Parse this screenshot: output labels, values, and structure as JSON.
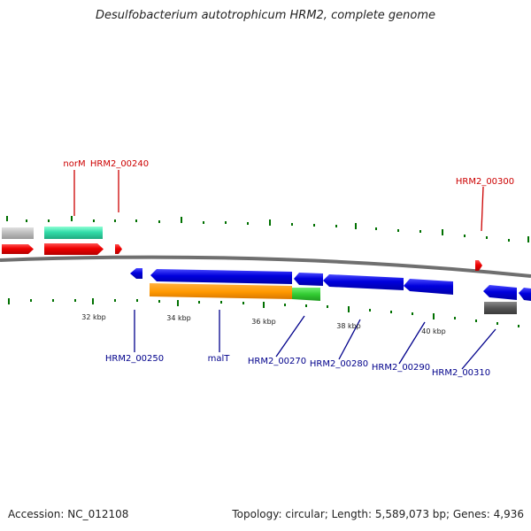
{
  "title": "Desulfobacterium autotrophicum HRM2, complete genome",
  "footer": {
    "accession": "Accession: NC_012108",
    "summary": "Topology: circular; Length: 5,589,073 bp; Genes: 4,936"
  },
  "colors": {
    "forward_label": "#cc0000",
    "reverse_label": "#00008b",
    "tick": "#007000",
    "forward_gene": "#ee0000",
    "reverse_gene": "#0000dd",
    "backbone": "#666666",
    "orange_gene": "#ff9900",
    "green_gene": "#33cc33",
    "teal_gene": "#33ddaa",
    "gray_gene": "#bbbbbb",
    "dark_gray_gene": "#555555"
  },
  "scale_labels": [
    "32 kbp",
    "34 kbp",
    "36 kbp",
    "38 kbp",
    "40 kbp"
  ],
  "forward_labels": [
    "norM",
    "HRM2_00240",
    "HRM2_00300"
  ],
  "reverse_labels": [
    "HRM2_00250",
    "malT",
    "HRM2_00270",
    "HRM2_00280",
    "HRM2_00290",
    "HRM2_00310"
  ]
}
